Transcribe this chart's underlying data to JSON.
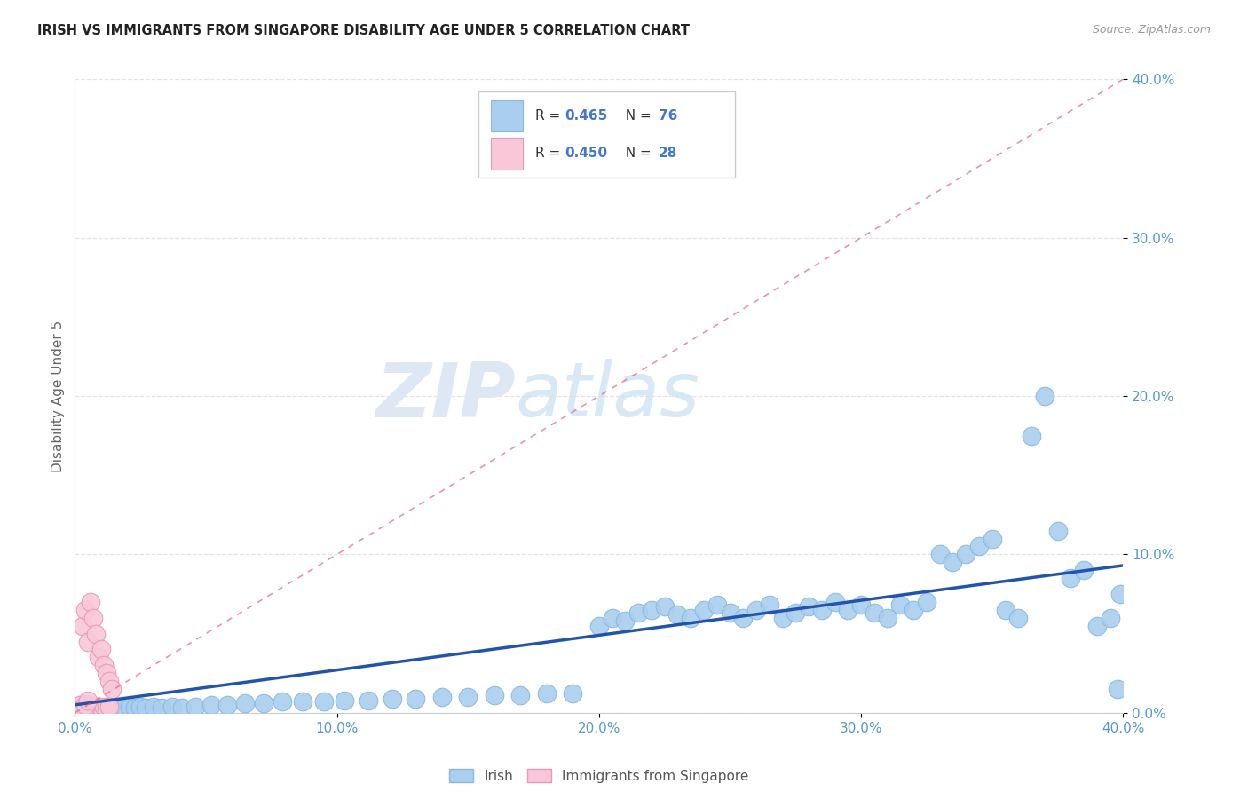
{
  "title": "IRISH VS IMMIGRANTS FROM SINGAPORE DISABILITY AGE UNDER 5 CORRELATION CHART",
  "source": "Source: ZipAtlas.com",
  "ylabel_label": "Disability Age Under 5",
  "tick_vals": [
    0.0,
    0.1,
    0.2,
    0.3,
    0.4
  ],
  "x_tick_labels": [
    "0.0%",
    "10.0%",
    "20.0%",
    "30.0%",
    "40.0%"
  ],
  "y_tick_labels": [
    "0.0%",
    "10.0%",
    "20.0%",
    "30.0%",
    "40.0%"
  ],
  "xlim": [
    0,
    0.4
  ],
  "ylim": [
    0,
    0.4
  ],
  "irish_color": "#aacfee",
  "irish_edge_color": "#88b8e0",
  "singapore_color": "#f9c8d8",
  "singapore_edge_color": "#e898b8",
  "irish_R": 0.465,
  "irish_N": 76,
  "singapore_R": 0.45,
  "singapore_N": 28,
  "irish_trend_color": "#2255aa",
  "singapore_trend_color": "#dd6688",
  "watermark_zip": "ZIP",
  "watermark_atlas": "atlas",
  "background_color": "#ffffff",
  "legend_r_color": "#4477cc",
  "legend_text_color": "#333333",
  "title_color": "#222222",
  "source_color": "#999999",
  "tick_color": "#5599cc",
  "grid_color": "#dddddd",
  "irish_scatter": [
    [
      0.004,
      0.005
    ],
    [
      0.007,
      0.003
    ],
    [
      0.009,
      0.004
    ],
    [
      0.011,
      0.003
    ],
    [
      0.013,
      0.004
    ],
    [
      0.015,
      0.003
    ],
    [
      0.017,
      0.004
    ],
    [
      0.019,
      0.003
    ],
    [
      0.021,
      0.004
    ],
    [
      0.023,
      0.003
    ],
    [
      0.025,
      0.004
    ],
    [
      0.027,
      0.003
    ],
    [
      0.03,
      0.004
    ],
    [
      0.033,
      0.003
    ],
    [
      0.037,
      0.004
    ],
    [
      0.041,
      0.003
    ],
    [
      0.046,
      0.004
    ],
    [
      0.052,
      0.005
    ],
    [
      0.058,
      0.005
    ],
    [
      0.065,
      0.006
    ],
    [
      0.072,
      0.006
    ],
    [
      0.079,
      0.007
    ],
    [
      0.087,
      0.007
    ],
    [
      0.095,
      0.007
    ],
    [
      0.103,
      0.008
    ],
    [
      0.112,
      0.008
    ],
    [
      0.121,
      0.009
    ],
    [
      0.13,
      0.009
    ],
    [
      0.14,
      0.01
    ],
    [
      0.15,
      0.01
    ],
    [
      0.16,
      0.011
    ],
    [
      0.17,
      0.011
    ],
    [
      0.18,
      0.012
    ],
    [
      0.19,
      0.012
    ],
    [
      0.2,
      0.055
    ],
    [
      0.205,
      0.06
    ],
    [
      0.21,
      0.058
    ],
    [
      0.215,
      0.063
    ],
    [
      0.22,
      0.065
    ],
    [
      0.225,
      0.067
    ],
    [
      0.23,
      0.062
    ],
    [
      0.235,
      0.06
    ],
    [
      0.24,
      0.065
    ],
    [
      0.245,
      0.068
    ],
    [
      0.25,
      0.063
    ],
    [
      0.255,
      0.06
    ],
    [
      0.26,
      0.065
    ],
    [
      0.265,
      0.068
    ],
    [
      0.27,
      0.06
    ],
    [
      0.275,
      0.063
    ],
    [
      0.28,
      0.067
    ],
    [
      0.285,
      0.065
    ],
    [
      0.29,
      0.07
    ],
    [
      0.295,
      0.065
    ],
    [
      0.3,
      0.068
    ],
    [
      0.305,
      0.063
    ],
    [
      0.31,
      0.06
    ],
    [
      0.315,
      0.068
    ],
    [
      0.32,
      0.065
    ],
    [
      0.325,
      0.07
    ],
    [
      0.33,
      0.1
    ],
    [
      0.335,
      0.095
    ],
    [
      0.34,
      0.1
    ],
    [
      0.345,
      0.105
    ],
    [
      0.35,
      0.11
    ],
    [
      0.355,
      0.065
    ],
    [
      0.36,
      0.06
    ],
    [
      0.365,
      0.175
    ],
    [
      0.37,
      0.2
    ],
    [
      0.375,
      0.115
    ],
    [
      0.38,
      0.085
    ],
    [
      0.385,
      0.09
    ],
    [
      0.39,
      0.055
    ],
    [
      0.395,
      0.06
    ],
    [
      0.398,
      0.015
    ],
    [
      0.399,
      0.075
    ]
  ],
  "singapore_scatter": [
    [
      0.003,
      0.055
    ],
    [
      0.004,
      0.065
    ],
    [
      0.005,
      0.045
    ],
    [
      0.006,
      0.07
    ],
    [
      0.007,
      0.06
    ],
    [
      0.008,
      0.05
    ],
    [
      0.009,
      0.035
    ],
    [
      0.01,
      0.04
    ],
    [
      0.011,
      0.03
    ],
    [
      0.012,
      0.025
    ],
    [
      0.013,
      0.02
    ],
    [
      0.014,
      0.015
    ],
    [
      0.005,
      0.005
    ],
    [
      0.006,
      0.003
    ],
    [
      0.007,
      0.004
    ],
    [
      0.008,
      0.003
    ],
    [
      0.009,
      0.004
    ],
    [
      0.01,
      0.003
    ],
    [
      0.011,
      0.004
    ],
    [
      0.012,
      0.003
    ],
    [
      0.013,
      0.004
    ],
    [
      0.003,
      0.005
    ],
    [
      0.004,
      0.003
    ],
    [
      0.002,
      0.003
    ],
    [
      0.002,
      0.005
    ],
    [
      0.003,
      0.003
    ],
    [
      0.004,
      0.005
    ],
    [
      0.005,
      0.008
    ]
  ],
  "irish_trend_x": [
    0.0,
    0.4
  ],
  "irish_trend_y": [
    0.005,
    0.093
  ],
  "singapore_trend_x": [
    0.0,
    0.4
  ],
  "singapore_trend_y": [
    0.0,
    0.4
  ]
}
